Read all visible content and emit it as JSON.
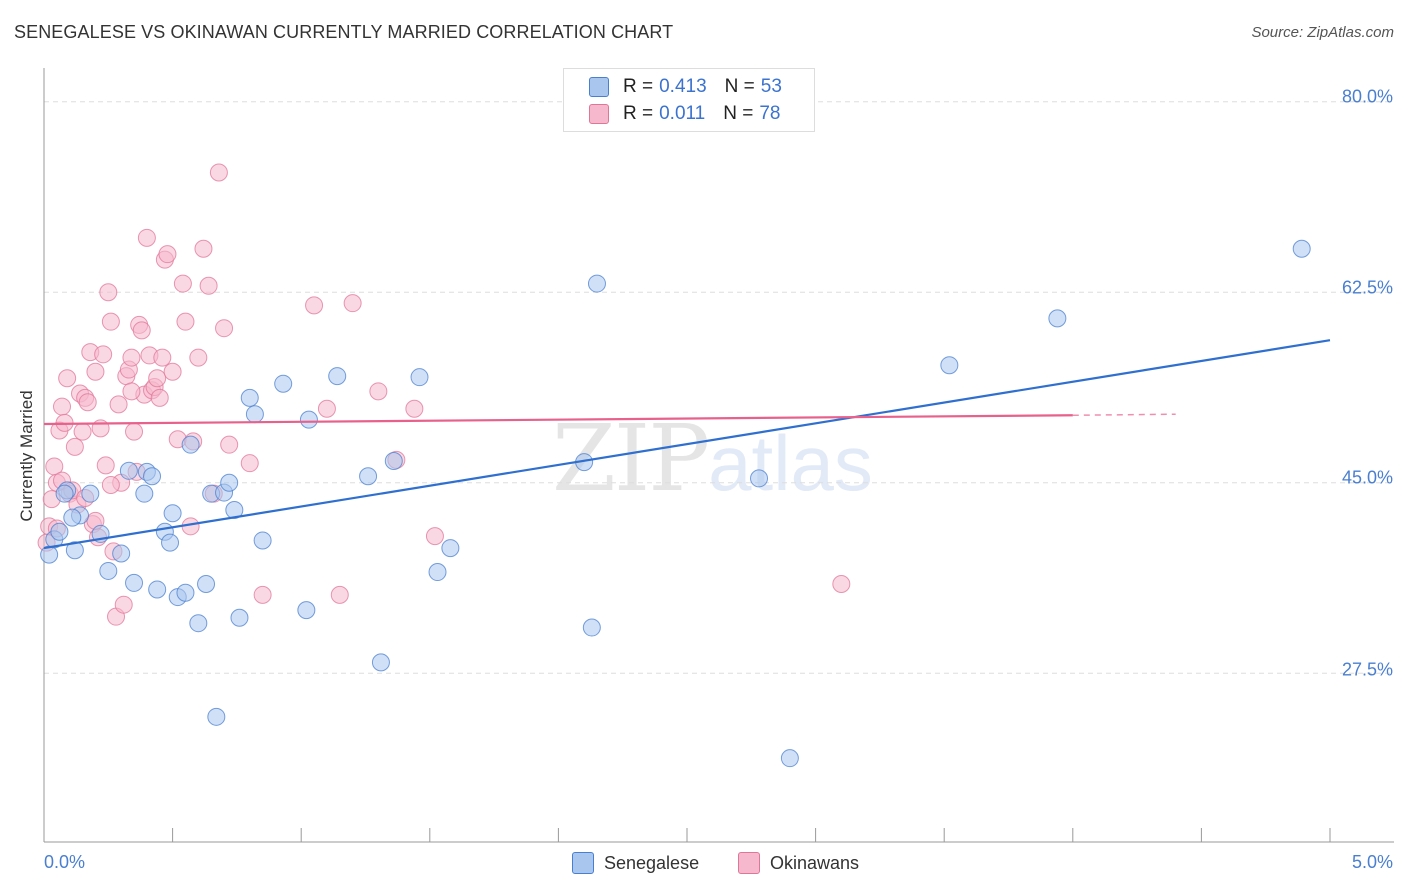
{
  "title": "SENEGALESE VS OKINAWAN CURRENTLY MARRIED CORRELATION CHART",
  "source": "Source: ZipAtlas.com",
  "watermark": {
    "zip": "ZIP",
    "atlas": "atlas"
  },
  "colors": {
    "blue_fill": "#a9c6ee",
    "blue_stroke": "#4a7fd0",
    "blue_line": "#2f6fcf",
    "pink_fill": "#f5b8cc",
    "pink_stroke": "#e07598",
    "pink_line": "#e8608c",
    "grid": "#dddddd",
    "axis_text": "#4a7fd0"
  },
  "legend_top": {
    "rows": [
      {
        "r_label": "R = ",
        "r_value": "0.413",
        "n_label": "N = ",
        "n_value": "53",
        "swatch": "#a9c6ee"
      },
      {
        "r_label": "R = ",
        "r_value": "0.011",
        "n_label": "N = ",
        "n_value": "78",
        "swatch": "#f5b8cc"
      }
    ]
  },
  "legend_bottom": [
    {
      "label": "Senegalese",
      "swatch": "#a9c6ee"
    },
    {
      "label": "Okinawans",
      "swatch": "#f5b8cc"
    }
  ],
  "chart_data": {
    "type": "scatter",
    "title": "SENEGALESE VS OKINAWAN CURRENTLY MARRIED CORRELATION CHART",
    "xlabel": "",
    "ylabel": "Currently Married",
    "xlim": [
      0.0,
      5.0
    ],
    "ylim": [
      12.0,
      82.0
    ],
    "x_tick_labels": [
      "0.0%",
      "5.0%"
    ],
    "y_ticks": [
      27.5,
      45.0,
      62.5,
      80.0
    ],
    "y_tick_labels": [
      "27.5%",
      "45.0%",
      "62.5%",
      "80.0%"
    ],
    "grid": true,
    "legend_position": "top-center",
    "series": [
      {
        "name": "Senegalese",
        "r": 0.413,
        "n": 53,
        "trend": {
          "x": [
            0.0,
            5.0
          ],
          "y": [
            39.0,
            58.1
          ]
        },
        "points": [
          [
            0.02,
            38.4
          ],
          [
            0.04,
            39.8
          ],
          [
            0.06,
            40.5
          ],
          [
            0.09,
            44.3
          ],
          [
            0.12,
            38.8
          ],
          [
            0.14,
            42.0
          ],
          [
            0.18,
            44.0
          ],
          [
            0.22,
            40.3
          ],
          [
            0.25,
            36.9
          ],
          [
            0.3,
            38.5
          ],
          [
            0.35,
            35.8
          ],
          [
            0.39,
            44.0
          ],
          [
            0.4,
            46.0
          ],
          [
            0.42,
            45.6
          ],
          [
            0.44,
            35.2
          ],
          [
            0.47,
            40.5
          ],
          [
            0.49,
            39.5
          ],
          [
            0.5,
            42.2
          ],
          [
            0.52,
            34.5
          ],
          [
            0.55,
            34.9
          ],
          [
            0.57,
            48.5
          ],
          [
            0.6,
            32.1
          ],
          [
            0.63,
            35.7
          ],
          [
            0.65,
            44.0
          ],
          [
            0.67,
            23.5
          ],
          [
            0.7,
            44.1
          ],
          [
            0.72,
            45.0
          ],
          [
            0.74,
            42.5
          ],
          [
            0.76,
            32.6
          ],
          [
            0.8,
            52.8
          ],
          [
            0.82,
            51.3
          ],
          [
            0.85,
            39.7
          ],
          [
            0.93,
            54.1
          ],
          [
            1.02,
            33.3
          ],
          [
            1.03,
            50.8
          ],
          [
            1.14,
            54.8
          ],
          [
            1.26,
            45.6
          ],
          [
            1.31,
            28.5
          ],
          [
            1.36,
            47.0
          ],
          [
            1.46,
            54.7
          ],
          [
            1.53,
            36.8
          ],
          [
            1.58,
            39.0
          ],
          [
            2.1,
            46.9
          ],
          [
            2.13,
            31.7
          ],
          [
            2.15,
            63.3
          ],
          [
            2.78,
            45.4
          ],
          [
            2.9,
            19.7
          ],
          [
            3.52,
            55.8
          ],
          [
            3.94,
            60.1
          ],
          [
            4.89,
            66.5
          ],
          [
            0.08,
            44.0
          ],
          [
            0.33,
            46.1
          ],
          [
            0.11,
            41.8
          ]
        ]
      },
      {
        "name": "Okinawans",
        "r": 0.011,
        "n": 78,
        "trend": {
          "x": [
            0.0,
            4.0
          ],
          "y": [
            50.4,
            51.2
          ]
        },
        "trend_dashed_to": {
          "x": 4.4,
          "y": 51.3
        },
        "points": [
          [
            0.01,
            39.5
          ],
          [
            0.02,
            41.0
          ],
          [
            0.03,
            43.5
          ],
          [
            0.04,
            46.5
          ],
          [
            0.05,
            45.0
          ],
          [
            0.06,
            49.8
          ],
          [
            0.07,
            52.0
          ],
          [
            0.08,
            50.5
          ],
          [
            0.09,
            54.6
          ],
          [
            0.1,
            44.0
          ],
          [
            0.12,
            48.3
          ],
          [
            0.13,
            43.0
          ],
          [
            0.14,
            53.2
          ],
          [
            0.15,
            49.7
          ],
          [
            0.16,
            52.8
          ],
          [
            0.17,
            52.4
          ],
          [
            0.18,
            57.0
          ],
          [
            0.19,
            41.2
          ],
          [
            0.2,
            55.2
          ],
          [
            0.21,
            40.0
          ],
          [
            0.22,
            50.0
          ],
          [
            0.23,
            56.8
          ],
          [
            0.24,
            46.6
          ],
          [
            0.25,
            62.5
          ],
          [
            0.26,
            59.8
          ],
          [
            0.27,
            38.7
          ],
          [
            0.28,
            32.7
          ],
          [
            0.29,
            52.2
          ],
          [
            0.3,
            45.0
          ],
          [
            0.31,
            33.8
          ],
          [
            0.32,
            54.8
          ],
          [
            0.33,
            55.4
          ],
          [
            0.34,
            56.5
          ],
          [
            0.35,
            49.7
          ],
          [
            0.36,
            46.0
          ],
          [
            0.37,
            59.5
          ],
          [
            0.38,
            59.0
          ],
          [
            0.39,
            53.1
          ],
          [
            0.4,
            67.5
          ],
          [
            0.41,
            56.7
          ],
          [
            0.42,
            53.5
          ],
          [
            0.43,
            53.8
          ],
          [
            0.44,
            54.6
          ],
          [
            0.45,
            52.8
          ],
          [
            0.47,
            65.5
          ],
          [
            0.48,
            66.0
          ],
          [
            0.5,
            55.2
          ],
          [
            0.52,
            49.0
          ],
          [
            0.54,
            63.3
          ],
          [
            0.55,
            59.8
          ],
          [
            0.57,
            41.0
          ],
          [
            0.6,
            56.5
          ],
          [
            0.62,
            66.5
          ],
          [
            0.64,
            63.1
          ],
          [
            0.66,
            44.0
          ],
          [
            0.68,
            73.5
          ],
          [
            0.7,
            59.2
          ],
          [
            0.72,
            48.5
          ],
          [
            0.8,
            46.8
          ],
          [
            0.85,
            34.7
          ],
          [
            1.05,
            61.3
          ],
          [
            1.1,
            51.8
          ],
          [
            1.15,
            34.7
          ],
          [
            1.2,
            61.5
          ],
          [
            1.3,
            53.4
          ],
          [
            1.37,
            47.1
          ],
          [
            1.44,
            51.8
          ],
          [
            1.52,
            40.1
          ],
          [
            3.1,
            35.7
          ],
          [
            0.05,
            40.8
          ],
          [
            0.07,
            45.2
          ],
          [
            0.11,
            44.3
          ],
          [
            0.16,
            43.6
          ],
          [
            0.2,
            41.5
          ],
          [
            0.26,
            44.8
          ],
          [
            0.58,
            48.8
          ],
          [
            0.46,
            56.5
          ],
          [
            0.34,
            53.4
          ]
        ]
      }
    ]
  }
}
